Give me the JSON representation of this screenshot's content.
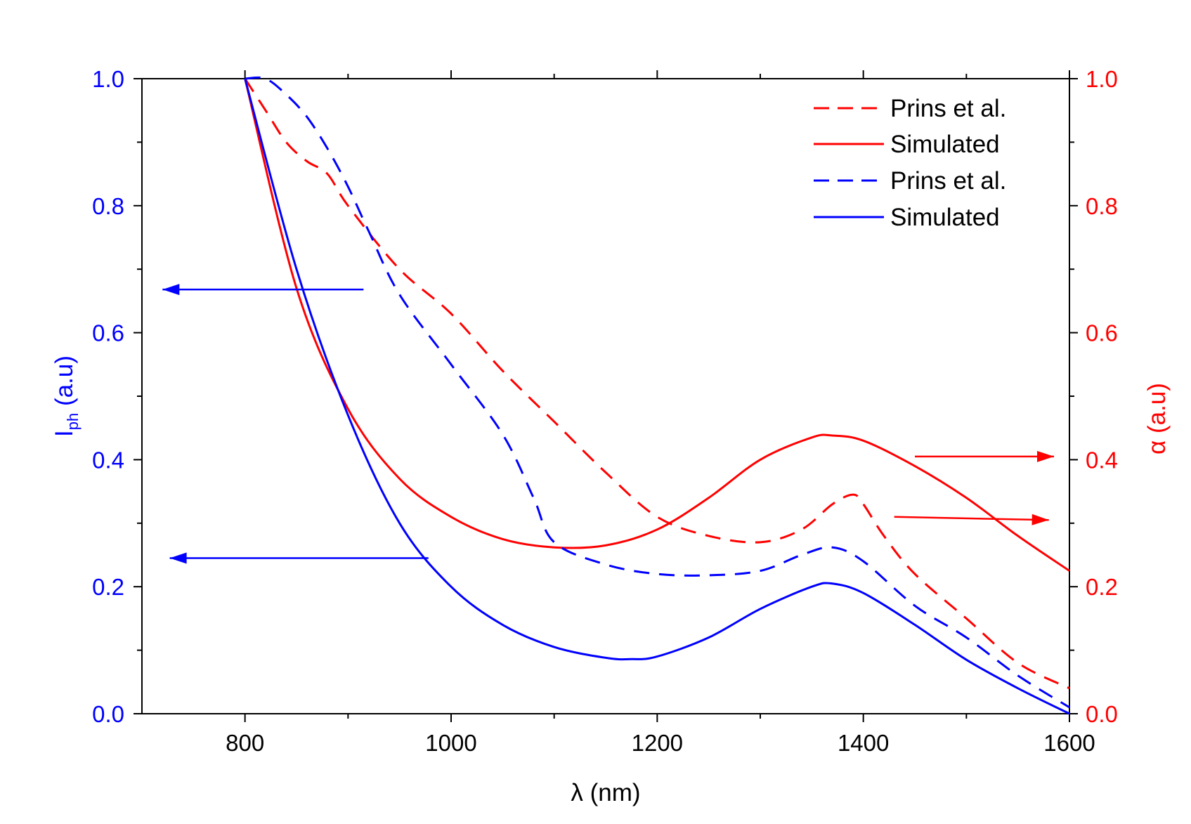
{
  "colors": {
    "red": "#ff0000",
    "blue": "#0000ff",
    "axis": "#000000"
  },
  "chart_data": {
    "type": "line",
    "title": "",
    "xlabel": "λ (nm)",
    "ylabel_left": {
      "main": "I",
      "sub": "ph",
      "rest": " (a.u)"
    },
    "ylabel_right": "α (a.u)",
    "xlim": [
      700,
      1600
    ],
    "ylim_left": [
      0,
      1
    ],
    "ylim_right": [
      0,
      1
    ],
    "x_ticks": [
      800,
      1000,
      1200,
      1400,
      1600
    ],
    "x_tick_labels": [
      "800",
      "1000",
      "1200",
      "1400",
      "1600"
    ],
    "y_ticks": [
      0,
      0.2,
      0.4,
      0.6,
      0.8,
      1.0
    ],
    "y_tick_labels": [
      "0.0",
      "0.2",
      "0.4",
      "0.6",
      "0.8",
      "1.0"
    ],
    "legend_position": "top-right",
    "series": [
      {
        "name": "Prins et al.",
        "axis": "right",
        "color": "red",
        "style": "dashed",
        "x": [
          800,
          820,
          840,
          860,
          880,
          900,
          950,
          1000,
          1050,
          1100,
          1150,
          1200,
          1250,
          1300,
          1340,
          1370,
          1390,
          1400,
          1420,
          1450,
          1500,
          1550,
          1600
        ],
        "y": [
          1.0,
          0.95,
          0.9,
          0.87,
          0.85,
          0.8,
          0.7,
          0.63,
          0.54,
          0.46,
          0.38,
          0.31,
          0.28,
          0.27,
          0.29,
          0.33,
          0.345,
          0.33,
          0.28,
          0.22,
          0.15,
          0.08,
          0.04
        ]
      },
      {
        "name": "Simulated",
        "axis": "right",
        "color": "red",
        "style": "solid",
        "x": [
          800,
          850,
          900,
          950,
          1000,
          1050,
          1100,
          1150,
          1200,
          1250,
          1300,
          1350,
          1370,
          1400,
          1450,
          1500,
          1550,
          1600
        ],
        "y": [
          1.0,
          0.67,
          0.48,
          0.37,
          0.31,
          0.275,
          0.262,
          0.265,
          0.29,
          0.34,
          0.4,
          0.435,
          0.438,
          0.43,
          0.39,
          0.34,
          0.28,
          0.225
        ]
      },
      {
        "name": "Prins et al.",
        "axis": "left",
        "color": "blue",
        "style": "dashed",
        "x": [
          800,
          820,
          840,
          860,
          880,
          900,
          920,
          950,
          1000,
          1050,
          1080,
          1100,
          1150,
          1200,
          1250,
          1300,
          1340,
          1370,
          1400,
          1450,
          1500,
          1550,
          1600
        ],
        "y": [
          1.0,
          1.0,
          0.975,
          0.94,
          0.89,
          0.83,
          0.76,
          0.66,
          0.55,
          0.44,
          0.34,
          0.27,
          0.235,
          0.22,
          0.218,
          0.225,
          0.25,
          0.262,
          0.24,
          0.17,
          0.12,
          0.06,
          0.01
        ]
      },
      {
        "name": "Simulated",
        "axis": "left",
        "color": "blue",
        "style": "solid",
        "x": [
          800,
          850,
          900,
          950,
          1000,
          1050,
          1100,
          1150,
          1175,
          1200,
          1250,
          1300,
          1350,
          1370,
          1400,
          1450,
          1500,
          1550,
          1600
        ],
        "y": [
          1.0,
          0.7,
          0.47,
          0.3,
          0.2,
          0.14,
          0.105,
          0.088,
          0.086,
          0.09,
          0.12,
          0.165,
          0.2,
          0.205,
          0.19,
          0.14,
          0.085,
          0.04,
          0.0
        ]
      }
    ],
    "annotations": [
      {
        "type": "arrow",
        "color": "blue",
        "from": [
          915,
          0.668
        ],
        "to": [
          720,
          0.668
        ],
        "direction": "left"
      },
      {
        "type": "arrow",
        "color": "blue",
        "from": [
          978,
          0.245
        ],
        "to": [
          727,
          0.245
        ],
        "direction": "left"
      },
      {
        "type": "arrow",
        "color": "red",
        "from": [
          1450,
          0.405
        ],
        "to": [
          1585,
          0.405
        ],
        "direction": "right"
      },
      {
        "type": "arrow",
        "color": "red",
        "from": [
          1430,
          0.31
        ],
        "to": [
          1580,
          0.305
        ],
        "direction": "right"
      }
    ]
  }
}
